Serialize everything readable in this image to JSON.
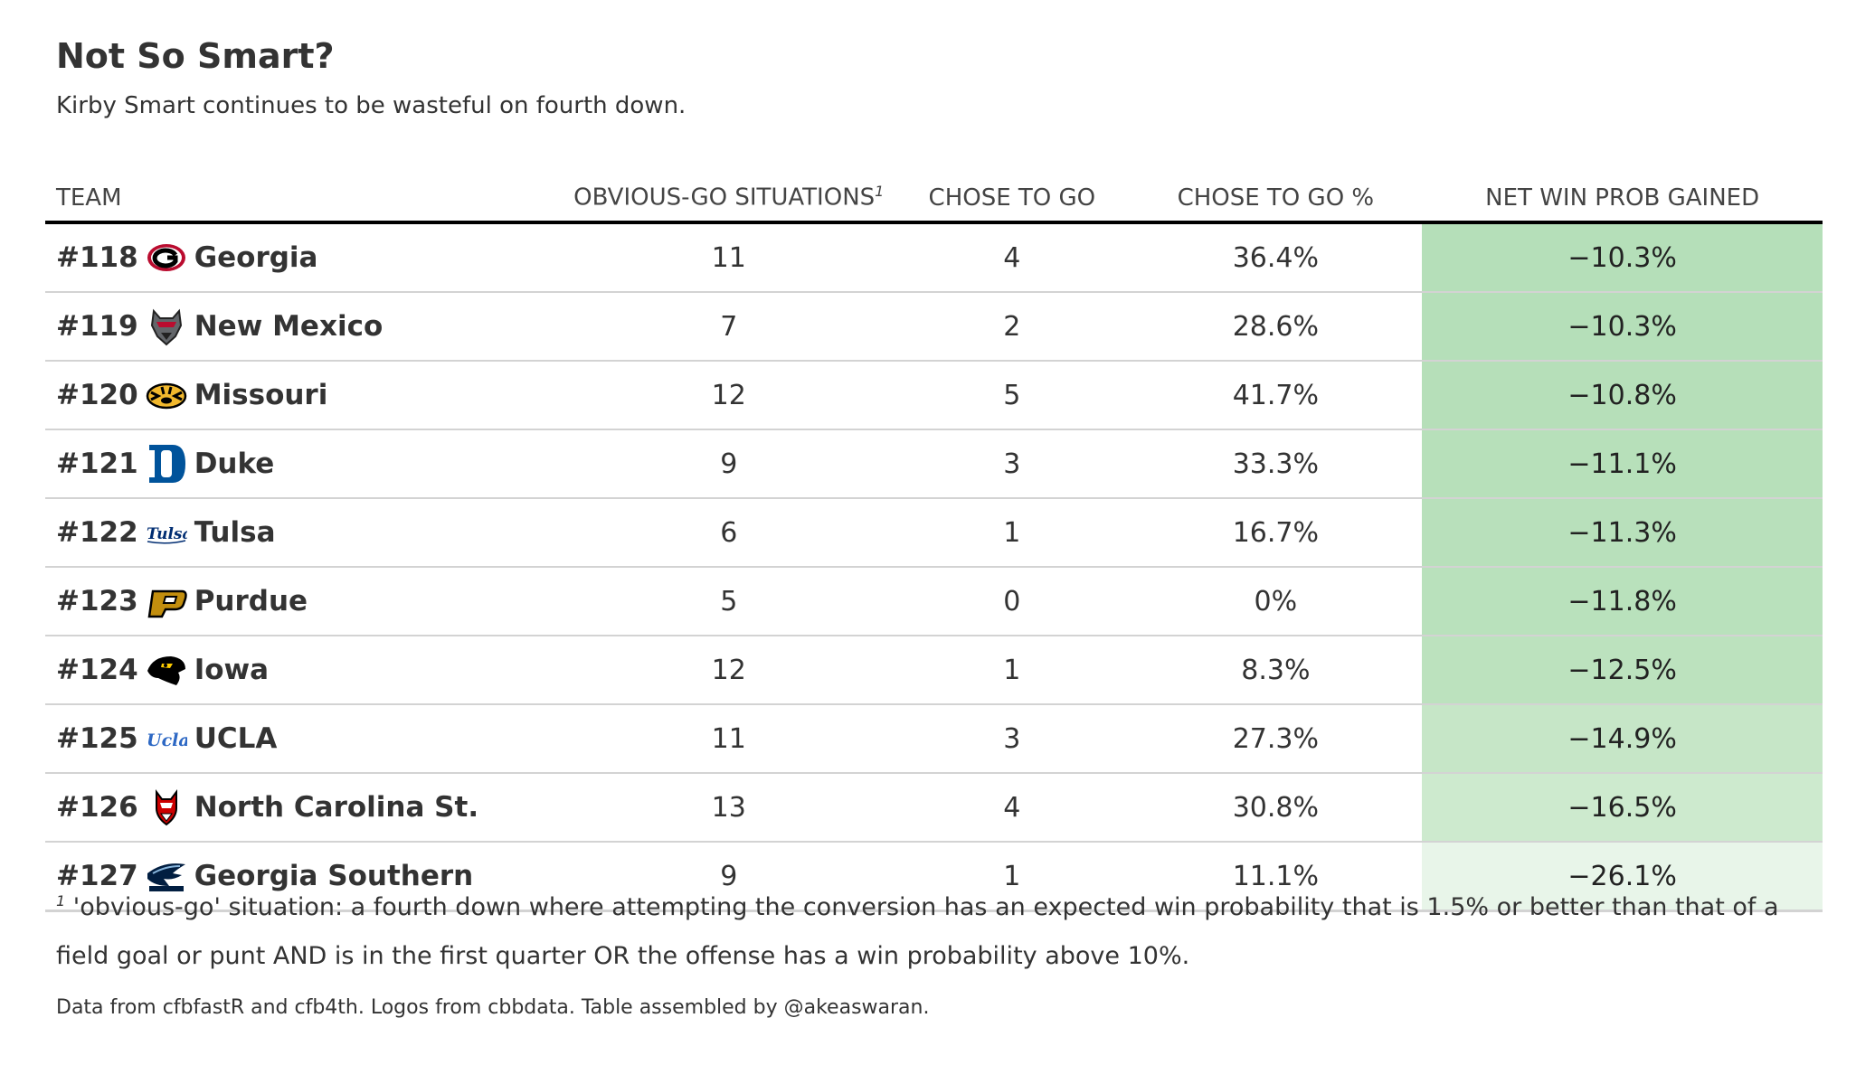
{
  "chart_data": {
    "type": "table",
    "title": "Not So Smart?",
    "subtitle": "Kirby Smart continues to be wasteful on fourth down.",
    "columns": {
      "team": "TEAM",
      "obvious": "OBVIOUS-GO SITUATIONS",
      "obvious_mark": "1",
      "chose": "CHOSE TO GO",
      "pct": "CHOSE TO GO %",
      "net": "NET WIN PROB GAINED"
    },
    "rows": [
      {
        "rank": "#118",
        "team": "Georgia",
        "logo": "georgia-g-logo-icon",
        "obvious": "11",
        "chose": "4",
        "pct": "36.4%",
        "net": "−10.3%",
        "net_value": -10.3,
        "net_color": "#b5dfb9"
      },
      {
        "rank": "#119",
        "team": "New Mexico",
        "logo": "new-mexico-lobo-logo-icon",
        "obvious": "7",
        "chose": "2",
        "pct": "28.6%",
        "net": "−10.3%",
        "net_value": -10.3,
        "net_color": "#b5dfb9"
      },
      {
        "rank": "#120",
        "team": "Missouri",
        "logo": "missouri-tiger-logo-icon",
        "obvious": "12",
        "chose": "5",
        "pct": "41.7%",
        "net": "−10.8%",
        "net_value": -10.8,
        "net_color": "#b6dfb9"
      },
      {
        "rank": "#121",
        "team": "Duke",
        "logo": "duke-d-logo-icon",
        "obvious": "9",
        "chose": "3",
        "pct": "33.3%",
        "net": "−11.1%",
        "net_value": -11.1,
        "net_color": "#b7e0ba"
      },
      {
        "rank": "#122",
        "team": "Tulsa",
        "logo": "tulsa-script-logo-icon",
        "obvious": "6",
        "chose": "1",
        "pct": "16.7%",
        "net": "−11.3%",
        "net_value": -11.3,
        "net_color": "#b8e0bb"
      },
      {
        "rank": "#123",
        "team": "Purdue",
        "logo": "purdue-p-logo-icon",
        "obvious": "5",
        "chose": "0",
        "pct": "0%",
        "net": "−11.8%",
        "net_value": -11.8,
        "net_color": "#b9e1bc"
      },
      {
        "rank": "#124",
        "team": "Iowa",
        "logo": "iowa-hawkeye-logo-icon",
        "obvious": "12",
        "chose": "1",
        "pct": "8.3%",
        "net": "−12.5%",
        "net_value": -12.5,
        "net_color": "#bce2be"
      },
      {
        "rank": "#125",
        "team": "UCLA",
        "logo": "ucla-script-logo-icon",
        "obvious": "11",
        "chose": "3",
        "pct": "27.3%",
        "net": "−14.9%",
        "net_value": -14.9,
        "net_color": "#c6e6c7"
      },
      {
        "rank": "#126",
        "team": "North Carolina St.",
        "logo": "nc-state-wolf-logo-icon",
        "obvious": "13",
        "chose": "4",
        "pct": "30.8%",
        "net": "−16.5%",
        "net_value": -16.5,
        "net_color": "#cdeace"
      },
      {
        "rank": "#127",
        "team": "Georgia Southern",
        "logo": "georgia-southern-eagle-logo-icon",
        "obvious": "9",
        "chose": "1",
        "pct": "11.1%",
        "net": "−26.1%",
        "net_value": -26.1,
        "net_color": "#e8f5e9"
      }
    ],
    "footnote_mark": "1",
    "footnote": "'obvious-go' situation: a fourth down where attempting the conversion has an expected win probability that is 1.5% or better than that of a field goal or punt AND is in the first quarter OR the offense has a win probability above 10%.",
    "source": "Data from cfbfastR and cfb4th. Logos from cbbdata. Table assembled by @akeaswaran."
  }
}
